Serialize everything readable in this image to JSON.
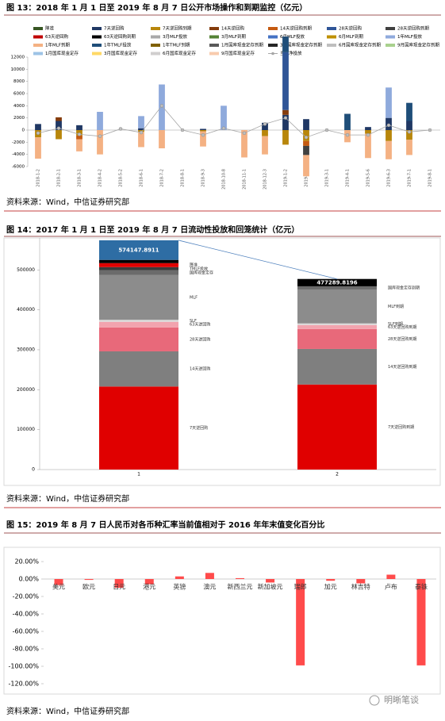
{
  "chart_data": [
    {
      "type": "bar",
      "title": "图 13：2018 年 1 月 1 日至 2019 年 8 月 7 日公开市场操作和到期监控（亿元）",
      "source": "资料来源：Wind，中信证券研究部",
      "categories": [
        "2018-1-2",
        "2018-2-1",
        "2018-3-1",
        "2018-4-2",
        "2018-5-2",
        "2018-6-1",
        "2018-7-2",
        "2018-8-1",
        "2018-9-3",
        "2018-10-8",
        "2018-11-1",
        "2018-12-3",
        "2019-1-2",
        "2019-2-1",
        "2019-3-1",
        "2019-4-1",
        "2019-5-6",
        "2019-6-3",
        "2019-7-1",
        "2019-8-1"
      ],
      "ylim": [
        -6000,
        12000
      ],
      "yticks": [
        -6000,
        -4000,
        -2000,
        0,
        2000,
        4000,
        6000,
        8000,
        10000,
        12000
      ],
      "series": [
        {
          "name": "降准",
          "color": "#375623",
          "values": [
            null,
            null,
            null,
            null,
            null,
            null,
            null,
            null,
            null,
            null,
            null,
            null,
            null,
            null,
            null,
            null,
            null,
            null,
            null,
            null
          ]
        },
        {
          "name": "7天逆回购",
          "color": "#203864",
          "values": [
            1000,
            1500,
            800,
            null,
            null,
            300,
            null,
            null,
            200,
            null,
            null,
            1200,
            2500,
            1800,
            null,
            null,
            500,
            2000,
            1500,
            null
          ]
        },
        {
          "name": "7天逆回购到期",
          "color": "#b8860b",
          "values": [
            -1200,
            -1500,
            -900,
            null,
            null,
            -300,
            null,
            null,
            -200,
            null,
            null,
            -1000,
            -2400,
            -1800,
            null,
            null,
            -600,
            -1800,
            -1600,
            null
          ]
        },
        {
          "name": "14天逆回购",
          "color": "#843c0c",
          "values": [
            null,
            600,
            null,
            null,
            null,
            null,
            null,
            null,
            null,
            null,
            null,
            null,
            800,
            null,
            null,
            null,
            null,
            null,
            null,
            null
          ]
        },
        {
          "name": "14天逆回购到期",
          "color": "#c55a11",
          "values": [
            null,
            null,
            -600,
            null,
            null,
            null,
            null,
            null,
            null,
            null,
            null,
            null,
            null,
            -800,
            null,
            null,
            null,
            null,
            null,
            null
          ]
        },
        {
          "name": "28天逆回购",
          "color": "#2f5597",
          "values": [
            null,
            null,
            null,
            null,
            null,
            null,
            null,
            null,
            null,
            null,
            null,
            null,
            9500,
            null,
            null,
            null,
            null,
            null,
            null,
            null
          ]
        },
        {
          "name": "28天逆回购到期",
          "color": "#404040",
          "values": [
            null,
            null,
            null,
            null,
            null,
            null,
            null,
            null,
            null,
            null,
            null,
            null,
            null,
            -1500,
            null,
            null,
            null,
            null,
            null,
            null
          ]
        },
        {
          "name": "63天逆回购",
          "color": "#c00000",
          "values": [
            null,
            null,
            null,
            null,
            null,
            null,
            null,
            null,
            null,
            null,
            null,
            null,
            null,
            null,
            null,
            null,
            null,
            null,
            null,
            null
          ]
        },
        {
          "name": "63天逆回购到期",
          "color": "#000000",
          "values": [
            null,
            null,
            null,
            null,
            null,
            null,
            null,
            null,
            null,
            null,
            null,
            null,
            null,
            null,
            null,
            null,
            null,
            null,
            null,
            null
          ]
        },
        {
          "name": "3月MLF投放",
          "color": "#a9a9a9",
          "values": [
            null,
            null,
            null,
            null,
            null,
            null,
            null,
            null,
            null,
            null,
            null,
            null,
            null,
            null,
            null,
            null,
            null,
            null,
            null,
            null
          ]
        },
        {
          "name": "3月MLF到期",
          "color": "#548235",
          "values": [
            null,
            null,
            null,
            null,
            null,
            null,
            null,
            null,
            null,
            null,
            null,
            null,
            null,
            null,
            null,
            null,
            null,
            null,
            null,
            null
          ]
        },
        {
          "name": "6月MLF投放",
          "color": "#4472c4",
          "values": [
            null,
            null,
            null,
            null,
            null,
            null,
            null,
            null,
            null,
            null,
            null,
            null,
            null,
            null,
            null,
            null,
            null,
            null,
            null,
            null
          ]
        },
        {
          "name": "6月MLF到期",
          "color": "#bf9000",
          "values": [
            null,
            null,
            null,
            null,
            null,
            null,
            null,
            null,
            null,
            null,
            null,
            null,
            null,
            null,
            null,
            null,
            null,
            null,
            null,
            null
          ]
        },
        {
          "name": "1年MLF投放",
          "color": "#8faadc",
          "values": [
            null,
            null,
            null,
            3000,
            null,
            2000,
            7500,
            null,
            null,
            4000,
            null,
            null,
            null,
            null,
            null,
            null,
            null,
            5000,
            null,
            null
          ]
        },
        {
          "name": "1年MLF到期",
          "color": "#f4b183",
          "values": [
            -3500,
            null,
            -2000,
            -4000,
            null,
            -2500,
            -3000,
            null,
            -2500,
            null,
            -4500,
            -3000,
            null,
            -3500,
            null,
            -2000,
            -4000,
            -3000,
            -2500,
            null
          ]
        },
        {
          "name": "1年TMLF投放",
          "color": "#1f4e79",
          "values": [
            null,
            null,
            null,
            null,
            null,
            null,
            null,
            null,
            null,
            null,
            null,
            null,
            2575,
            null,
            null,
            2674,
            null,
            null,
            2977,
            null
          ]
        },
        {
          "name": "1年TMLF到期",
          "color": "#7f6000",
          "values": [
            null,
            null,
            null,
            null,
            null,
            null,
            null,
            null,
            null,
            null,
            null,
            null,
            null,
            null,
            null,
            null,
            null,
            null,
            null,
            null
          ]
        },
        {
          "name": "1月国库现金定存到期",
          "color": "#595959",
          "values": [
            null,
            null,
            null,
            null,
            null,
            null,
            null,
            null,
            null,
            null,
            null,
            null,
            null,
            null,
            null,
            null,
            null,
            null,
            null,
            null
          ]
        },
        {
          "name": "3月国库现金定存到期",
          "color": "#262626",
          "values": [
            null,
            null,
            null,
            null,
            null,
            null,
            null,
            null,
            null,
            null,
            null,
            null,
            null,
            null,
            null,
            null,
            null,
            null,
            null,
            null
          ]
        },
        {
          "name": "6月国库现金定存到期",
          "color": "#bfbfbf",
          "values": [
            null,
            null,
            null,
            null,
            null,
            null,
            null,
            null,
            null,
            null,
            null,
            null,
            null,
            null,
            null,
            null,
            null,
            null,
            null,
            null
          ]
        },
        {
          "name": "9月国库现金定存到期",
          "color": "#a9d18e",
          "values": [
            null,
            null,
            null,
            null,
            null,
            null,
            null,
            null,
            null,
            null,
            null,
            null,
            null,
            null,
            null,
            null,
            null,
            null,
            null,
            null
          ]
        },
        {
          "name": "1月国库现金定存",
          "color": "#9dc3e6",
          "values": [
            null,
            null,
            null,
            null,
            null,
            null,
            null,
            null,
            null,
            null,
            null,
            null,
            null,
            null,
            null,
            null,
            null,
            null,
            null,
            null
          ]
        },
        {
          "name": "3月国库现金定存",
          "color": "#ffd966",
          "values": [
            null,
            null,
            null,
            null,
            null,
            null,
            null,
            null,
            null,
            null,
            null,
            null,
            null,
            null,
            null,
            null,
            null,
            null,
            null,
            null
          ]
        },
        {
          "name": "6月国库现金定存",
          "color": "#d0cece",
          "values": [
            null,
            null,
            null,
            null,
            null,
            null,
            null,
            null,
            null,
            null,
            null,
            null,
            null,
            null,
            null,
            null,
            null,
            null,
            null,
            null
          ]
        },
        {
          "name": "9月国库现金定存",
          "color": "#f8cbad",
          "values": [
            null,
            null,
            null,
            null,
            null,
            null,
            null,
            null,
            null,
            null,
            null,
            null,
            null,
            null,
            null,
            null,
            null,
            null,
            null,
            null
          ]
        },
        {
          "name": "当日净投放",
          "color": "#a6a6a6",
          "type": "line",
          "values": [
            -500,
            300,
            -700,
            -1000,
            200,
            -400,
            4000,
            0,
            -800,
            300,
            -500,
            1000,
            2000,
            -1200,
            0,
            -800,
            -800,
            800,
            -300,
            0
          ]
        }
      ]
    },
    {
      "type": "stacked_bar",
      "title": "图 14：2017 年 1 月 1 日至 2019 年 8 月 7 日流动性投放和回笼统计（亿元）",
      "source": "资料来源：Wind，中信证券研究部",
      "categories": [
        "1",
        "2"
      ],
      "ylim": [
        0,
        580000
      ],
      "yticks": [
        0,
        100000,
        200000,
        300000,
        400000,
        500000
      ],
      "stacks": [
        {
          "total": 574147.8911,
          "segments": [
            {
              "name": "7天逆回购",
              "value": 208000,
              "color": "#e00000"
            },
            {
              "name": "14天逆回购",
              "value": 88000,
              "color": "#7f7f7f"
            },
            {
              "name": "28天逆回购",
              "value": 60000,
              "color": "#e8697a"
            },
            {
              "name": "63天逆回购",
              "value": 14000,
              "color": "#f2a3ae"
            },
            {
              "name": "SLF",
              "value": 5000,
              "color": "#d9d9d9"
            },
            {
              "name": "MLF",
              "value": 112000,
              "color": "#8c8c8c"
            },
            {
              "name": "国库现金定存",
              "value": 12000,
              "color": "#6b6b6b"
            },
            {
              "name": "TMLF投放",
              "value": 8000,
              "color": "#3a3a3a"
            },
            {
              "name": "降准",
              "value": 10000,
              "color": "#e00000"
            },
            {
              "value": 8000,
              "color": "#000000"
            },
            {
              "value": 49147.8911,
              "color": "#2e6da4"
            }
          ]
        },
        {
          "total": 477289.8196,
          "segments": [
            {
              "name": "7天逆回购到期",
              "value": 213000,
              "color": "#e00000"
            },
            {
              "name": "14天逆回购到期",
              "value": 89000,
              "color": "#7f7f7f"
            },
            {
              "name": "28天逆回购到期",
              "value": 50000,
              "color": "#e8697a"
            },
            {
              "name": "63天逆回购到期",
              "value": 10000,
              "color": "#f2a3ae"
            },
            {
              "name": "SLF到期",
              "value": 4000,
              "color": "#d9d9d9"
            },
            {
              "name": "MLF到期",
              "value": 85000,
              "color": "#8c8c8c"
            },
            {
              "name": "国库现金定存到期",
              "value": 8000,
              "color": "#6b6b6b"
            },
            {
              "value": 18289.8196,
              "color": "#000000"
            }
          ]
        }
      ]
    },
    {
      "type": "bar",
      "title": "图 15：2019 年 8 月 7 日人民币对各币种汇率当前值相对于 2016 年年末值变化百分比",
      "source": "资料来源：Wind，中信证券研究部",
      "categories": [
        "美元",
        "欧元",
        "日元",
        "港元",
        "英镑",
        "澳元",
        "新西兰元",
        "新加坡元",
        "瑞郎",
        "加元",
        "林吉特",
        "卢布",
        "泰铢"
      ],
      "values": [
        -7,
        -1,
        -10,
        -6,
        3,
        7,
        1,
        -4,
        -99,
        -2,
        -5,
        5,
        -99
      ],
      "color": "#ff4b4b",
      "ylim": [
        -120,
        20
      ],
      "yticks": [
        {
          "value": -120,
          "label": "-120.00%"
        },
        {
          "value": -100,
          "label": "-100.00%"
        },
        {
          "value": -80,
          "label": "-80.00%"
        },
        {
          "value": -60,
          "label": "-60.00%"
        },
        {
          "value": -40,
          "label": "-40.00%"
        },
        {
          "value": -20,
          "label": "-20.00%"
        },
        {
          "value": 0,
          "label": "0.00%"
        },
        {
          "value": 20,
          "label": "20.00%"
        }
      ]
    }
  ],
  "watermark": "明晰笔谈"
}
